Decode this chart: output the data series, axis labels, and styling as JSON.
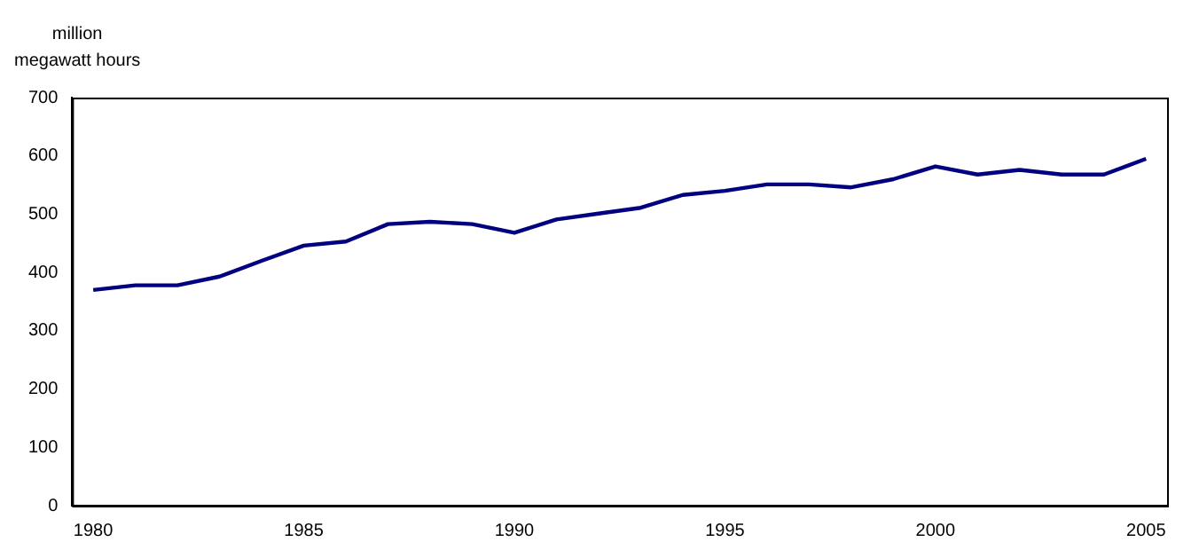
{
  "chart_data": {
    "type": "line",
    "ylabel": "million\nmegawatt hours",
    "categories": [
      "1980",
      null,
      null,
      null,
      null,
      "1985",
      null,
      null,
      null,
      null,
      "1990",
      null,
      null,
      null,
      null,
      "1995",
      null,
      null,
      null,
      null,
      "2000",
      null,
      null,
      null,
      null,
      "2005"
    ],
    "series": [
      {
        "color": "#000080",
        "values": [
          370,
          378,
          378,
          393,
          420,
          446,
          453,
          483,
          487,
          483,
          468,
          491,
          501,
          511,
          533,
          540,
          551,
          551,
          546,
          560,
          582,
          568,
          576,
          568,
          568,
          595
        ]
      }
    ],
    "ylim": [
      0,
      700
    ],
    "yticks": [
      0,
      100,
      200,
      300,
      400,
      500,
      600,
      700
    ],
    "grid": false,
    "legend": false,
    "marker": "none",
    "line_style": "solid"
  }
}
